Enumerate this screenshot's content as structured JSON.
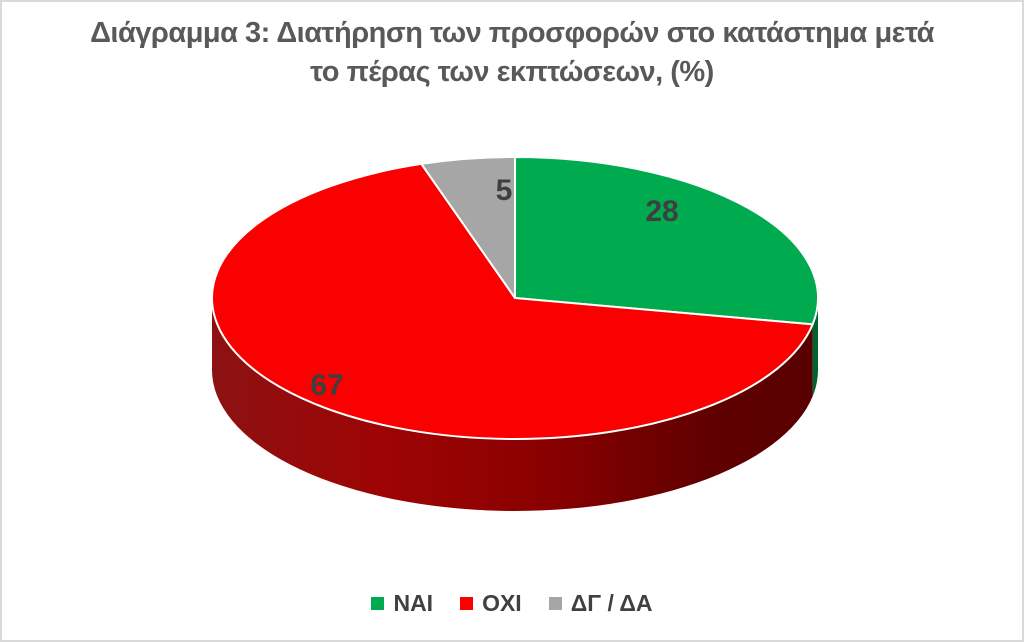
{
  "page": {
    "background": "#FFFFFF",
    "border_color": "#D9D9D9"
  },
  "title": {
    "text": "Διάγραμμα 3: Διατήρηση των προσφορών στο κατάστημα μετά το πέρας των εκπτώσεων, (%)",
    "lines": [
      "Διάγραμμα 3: Διατήρηση των προσφορών στο κατάστημα μετά",
      "το πέρας των εκπτώσεων, (%)"
    ],
    "color": "#595959"
  },
  "legend": {
    "position": "bottom",
    "items": [
      {
        "label": "ΝΑΙ",
        "color": "#00AB50"
      },
      {
        "label": "ΟΧΙ",
        "color": "#FB0000"
      },
      {
        "label": "ΔΓ / ΔΑ",
        "color": "#A6A6A6"
      }
    ]
  },
  "chart_data": {
    "type": "pie",
    "style": "3d",
    "title": "Διάγραμμα 3: Διατήρηση των προσφορών στο κατάστημα μετά το πέρας των εκπτώσεων, (%)",
    "categories": [
      "ΝΑΙ",
      "ΟΧΙ",
      "ΔΓ / ΔΑ"
    ],
    "values": [
      28,
      67,
      5
    ],
    "unit": "%",
    "colors": [
      "#00AB50",
      "#FB0000",
      "#A6A6A6"
    ],
    "data_label_color": "#3F3F3F",
    "start_angle_deg": 0,
    "direction": "clockwise",
    "legend_position": "bottom",
    "grid": false
  }
}
